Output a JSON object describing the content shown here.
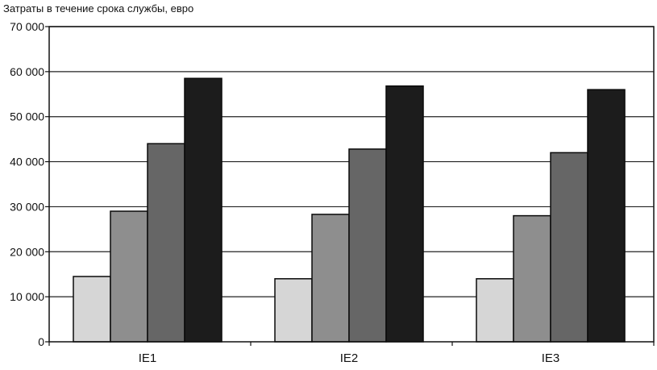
{
  "chart_data": {
    "type": "bar",
    "title": "Затраты в течение срока службы, евро",
    "xlabel": "",
    "ylabel": "",
    "categories": [
      "IE1",
      "IE2",
      "IE3"
    ],
    "series": [
      {
        "color": "#d6d6d6",
        "values": [
          14500,
          14000,
          14000
        ]
      },
      {
        "color": "#8e8e8e",
        "values": [
          29000,
          28300,
          28000
        ]
      },
      {
        "color": "#666666",
        "values": [
          44000,
          42800,
          42000
        ]
      },
      {
        "color": "#1c1c1c",
        "values": [
          58500,
          56800,
          56000
        ]
      }
    ],
    "ylim": [
      0,
      70000
    ],
    "yticks": [
      0,
      10000,
      20000,
      30000,
      40000,
      50000,
      60000,
      70000
    ],
    "ytick_labels": [
      "0",
      "10 000",
      "20 000",
      "30 000",
      "40 000",
      "50 000",
      "60 000",
      "70 000"
    ],
    "grid": true,
    "legend": "none"
  }
}
